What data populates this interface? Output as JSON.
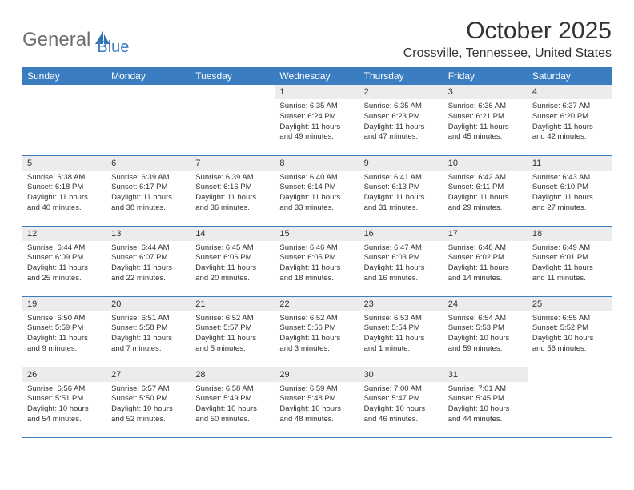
{
  "logo": {
    "general": "General",
    "blue": "Blue"
  },
  "title": "October 2025",
  "location": "Crossville, Tennessee, United States",
  "colors": {
    "header_bg": "#3a7dc0",
    "header_text": "#ffffff",
    "day_num_bg": "#ececec",
    "border": "#3a7dc0",
    "text": "#333333",
    "logo_gray": "#6e6e6e",
    "logo_blue": "#3a7dc0"
  },
  "weekdays": [
    "Sunday",
    "Monday",
    "Tuesday",
    "Wednesday",
    "Thursday",
    "Friday",
    "Saturday"
  ],
  "weeks": [
    [
      {
        "num": "",
        "sunrise": "",
        "sunset": "",
        "daylight": ""
      },
      {
        "num": "",
        "sunrise": "",
        "sunset": "",
        "daylight": ""
      },
      {
        "num": "",
        "sunrise": "",
        "sunset": "",
        "daylight": ""
      },
      {
        "num": "1",
        "sunrise": "Sunrise: 6:35 AM",
        "sunset": "Sunset: 6:24 PM",
        "daylight": "Daylight: 11 hours and 49 minutes."
      },
      {
        "num": "2",
        "sunrise": "Sunrise: 6:35 AM",
        "sunset": "Sunset: 6:23 PM",
        "daylight": "Daylight: 11 hours and 47 minutes."
      },
      {
        "num": "3",
        "sunrise": "Sunrise: 6:36 AM",
        "sunset": "Sunset: 6:21 PM",
        "daylight": "Daylight: 11 hours and 45 minutes."
      },
      {
        "num": "4",
        "sunrise": "Sunrise: 6:37 AM",
        "sunset": "Sunset: 6:20 PM",
        "daylight": "Daylight: 11 hours and 42 minutes."
      }
    ],
    [
      {
        "num": "5",
        "sunrise": "Sunrise: 6:38 AM",
        "sunset": "Sunset: 6:18 PM",
        "daylight": "Daylight: 11 hours and 40 minutes."
      },
      {
        "num": "6",
        "sunrise": "Sunrise: 6:39 AM",
        "sunset": "Sunset: 6:17 PM",
        "daylight": "Daylight: 11 hours and 38 minutes."
      },
      {
        "num": "7",
        "sunrise": "Sunrise: 6:39 AM",
        "sunset": "Sunset: 6:16 PM",
        "daylight": "Daylight: 11 hours and 36 minutes."
      },
      {
        "num": "8",
        "sunrise": "Sunrise: 6:40 AM",
        "sunset": "Sunset: 6:14 PM",
        "daylight": "Daylight: 11 hours and 33 minutes."
      },
      {
        "num": "9",
        "sunrise": "Sunrise: 6:41 AM",
        "sunset": "Sunset: 6:13 PM",
        "daylight": "Daylight: 11 hours and 31 minutes."
      },
      {
        "num": "10",
        "sunrise": "Sunrise: 6:42 AM",
        "sunset": "Sunset: 6:11 PM",
        "daylight": "Daylight: 11 hours and 29 minutes."
      },
      {
        "num": "11",
        "sunrise": "Sunrise: 6:43 AM",
        "sunset": "Sunset: 6:10 PM",
        "daylight": "Daylight: 11 hours and 27 minutes."
      }
    ],
    [
      {
        "num": "12",
        "sunrise": "Sunrise: 6:44 AM",
        "sunset": "Sunset: 6:09 PM",
        "daylight": "Daylight: 11 hours and 25 minutes."
      },
      {
        "num": "13",
        "sunrise": "Sunrise: 6:44 AM",
        "sunset": "Sunset: 6:07 PM",
        "daylight": "Daylight: 11 hours and 22 minutes."
      },
      {
        "num": "14",
        "sunrise": "Sunrise: 6:45 AM",
        "sunset": "Sunset: 6:06 PM",
        "daylight": "Daylight: 11 hours and 20 minutes."
      },
      {
        "num": "15",
        "sunrise": "Sunrise: 6:46 AM",
        "sunset": "Sunset: 6:05 PM",
        "daylight": "Daylight: 11 hours and 18 minutes."
      },
      {
        "num": "16",
        "sunrise": "Sunrise: 6:47 AM",
        "sunset": "Sunset: 6:03 PM",
        "daylight": "Daylight: 11 hours and 16 minutes."
      },
      {
        "num": "17",
        "sunrise": "Sunrise: 6:48 AM",
        "sunset": "Sunset: 6:02 PM",
        "daylight": "Daylight: 11 hours and 14 minutes."
      },
      {
        "num": "18",
        "sunrise": "Sunrise: 6:49 AM",
        "sunset": "Sunset: 6:01 PM",
        "daylight": "Daylight: 11 hours and 11 minutes."
      }
    ],
    [
      {
        "num": "19",
        "sunrise": "Sunrise: 6:50 AM",
        "sunset": "Sunset: 5:59 PM",
        "daylight": "Daylight: 11 hours and 9 minutes."
      },
      {
        "num": "20",
        "sunrise": "Sunrise: 6:51 AM",
        "sunset": "Sunset: 5:58 PM",
        "daylight": "Daylight: 11 hours and 7 minutes."
      },
      {
        "num": "21",
        "sunrise": "Sunrise: 6:52 AM",
        "sunset": "Sunset: 5:57 PM",
        "daylight": "Daylight: 11 hours and 5 minutes."
      },
      {
        "num": "22",
        "sunrise": "Sunrise: 6:52 AM",
        "sunset": "Sunset: 5:56 PM",
        "daylight": "Daylight: 11 hours and 3 minutes."
      },
      {
        "num": "23",
        "sunrise": "Sunrise: 6:53 AM",
        "sunset": "Sunset: 5:54 PM",
        "daylight": "Daylight: 11 hours and 1 minute."
      },
      {
        "num": "24",
        "sunrise": "Sunrise: 6:54 AM",
        "sunset": "Sunset: 5:53 PM",
        "daylight": "Daylight: 10 hours and 59 minutes."
      },
      {
        "num": "25",
        "sunrise": "Sunrise: 6:55 AM",
        "sunset": "Sunset: 5:52 PM",
        "daylight": "Daylight: 10 hours and 56 minutes."
      }
    ],
    [
      {
        "num": "26",
        "sunrise": "Sunrise: 6:56 AM",
        "sunset": "Sunset: 5:51 PM",
        "daylight": "Daylight: 10 hours and 54 minutes."
      },
      {
        "num": "27",
        "sunrise": "Sunrise: 6:57 AM",
        "sunset": "Sunset: 5:50 PM",
        "daylight": "Daylight: 10 hours and 52 minutes."
      },
      {
        "num": "28",
        "sunrise": "Sunrise: 6:58 AM",
        "sunset": "Sunset: 5:49 PM",
        "daylight": "Daylight: 10 hours and 50 minutes."
      },
      {
        "num": "29",
        "sunrise": "Sunrise: 6:59 AM",
        "sunset": "Sunset: 5:48 PM",
        "daylight": "Daylight: 10 hours and 48 minutes."
      },
      {
        "num": "30",
        "sunrise": "Sunrise: 7:00 AM",
        "sunset": "Sunset: 5:47 PM",
        "daylight": "Daylight: 10 hours and 46 minutes."
      },
      {
        "num": "31",
        "sunrise": "Sunrise: 7:01 AM",
        "sunset": "Sunset: 5:45 PM",
        "daylight": "Daylight: 10 hours and 44 minutes."
      },
      {
        "num": "",
        "sunrise": "",
        "sunset": "",
        "daylight": ""
      }
    ]
  ]
}
